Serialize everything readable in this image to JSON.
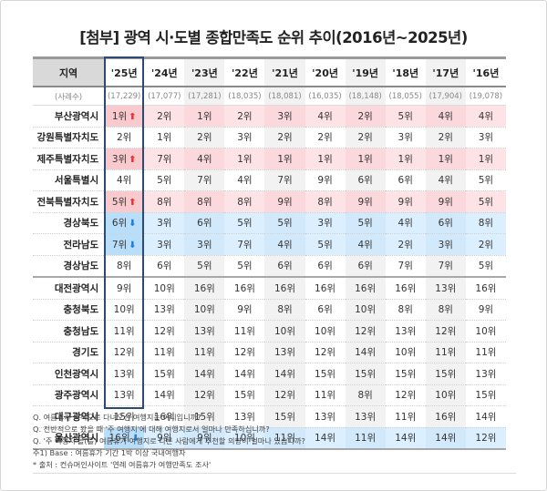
{
  "title": "[첨부] 광역 시·도별 종합만족도 순위 추이(2016년~2025년)",
  "table": {
    "region_header": "지역",
    "sample_label": "(사례수)",
    "years": [
      "'25년",
      "'24년",
      "'23년",
      "'22년",
      "'21년",
      "'20년",
      "'19년",
      "'18년",
      "'17년",
      "'16년"
    ],
    "samples": [
      "(17,229)",
      "(17,077)",
      "(17,281)",
      "(18,035)",
      "(18,081)",
      "(16,035)",
      "(18,148)",
      "(18,055)",
      "(17,904)",
      "(19,078)"
    ],
    "rows": [
      {
        "region": "부산광역시",
        "trend": "up",
        "arrow": "⬆",
        "ranks": [
          "1위",
          "2위",
          "1위",
          "2위",
          "3위",
          "4위",
          "2위",
          "5위",
          "4위",
          "4위"
        ]
      },
      {
        "region": "강원특별자치도",
        "trend": "",
        "arrow": "",
        "ranks": [
          "2위",
          "1위",
          "2위",
          "3위",
          "2위",
          "2위",
          "2위",
          "3위",
          "2위",
          "3위"
        ]
      },
      {
        "region": "제주특별자치도",
        "trend": "up",
        "arrow": "⬆",
        "ranks": [
          "3위",
          "7위",
          "4위",
          "1위",
          "1위",
          "1위",
          "1위",
          "1위",
          "1위",
          "1위"
        ]
      },
      {
        "region": "서울특별시",
        "trend": "",
        "arrow": "",
        "ranks": [
          "4위",
          "5위",
          "7위",
          "4위",
          "7위",
          "9위",
          "6위",
          "6위",
          "4위",
          "5위"
        ]
      },
      {
        "region": "전북특별자치도",
        "trend": "up",
        "arrow": "⬆",
        "ranks": [
          "5위",
          "8위",
          "8위",
          "8위",
          "9위",
          "8위",
          "9위",
          "9위",
          "9위",
          "5위"
        ]
      },
      {
        "region": "경상북도",
        "trend": "down",
        "arrow": "⬇",
        "ranks": [
          "6위",
          "3위",
          "6위",
          "5위",
          "5위",
          "3위",
          "5위",
          "4위",
          "6위",
          "8위"
        ]
      },
      {
        "region": "전라남도",
        "trend": "down",
        "arrow": "⬇",
        "ranks": [
          "7위",
          "3위",
          "3위",
          "7위",
          "4위",
          "5위",
          "4위",
          "2위",
          "3위",
          "2위"
        ]
      },
      {
        "region": "경상남도",
        "trend": "",
        "arrow": "",
        "ranks": [
          "8위",
          "6위",
          "5위",
          "5위",
          "6위",
          "6위",
          "6위",
          "7위",
          "7위",
          "5위"
        ]
      },
      {
        "region": "대전광역시",
        "trend": "",
        "arrow": "",
        "ranks": [
          "9위",
          "10위",
          "16위",
          "16위",
          "16위",
          "16위",
          "16위",
          "16위",
          "13위",
          "16위"
        ]
      },
      {
        "region": "충청북도",
        "trend": "",
        "arrow": "",
        "ranks": [
          "10위",
          "13위",
          "10위",
          "9위",
          "8위",
          "6위",
          "10위",
          "8위",
          "8위",
          "9위"
        ]
      },
      {
        "region": "충청남도",
        "trend": "",
        "arrow": "",
        "ranks": [
          "11위",
          "12위",
          "13위",
          "11위",
          "10위",
          "10위",
          "12위",
          "13위",
          "12위",
          "10위"
        ]
      },
      {
        "region": "경기도",
        "trend": "",
        "arrow": "",
        "ranks": [
          "12위",
          "11위",
          "11위",
          "12위",
          "13위",
          "12위",
          "14위",
          "10위",
          "11위",
          "11위"
        ]
      },
      {
        "region": "인천광역시",
        "trend": "",
        "arrow": "",
        "ranks": [
          "13위",
          "15위",
          "14위",
          "14위",
          "14위",
          "15위",
          "15위",
          "15위",
          "15위",
          "13위"
        ]
      },
      {
        "region": "광주광역시",
        "trend": "",
        "arrow": "",
        "ranks": [
          "13위",
          "14위",
          "12위",
          "15위",
          "12위",
          "11위",
          "8위",
          "12위",
          "10위",
          "15위"
        ]
      },
      {
        "region": "대구광역시",
        "trend": "",
        "arrow": "",
        "ranks": [
          "15위",
          "16위",
          "15위",
          "13위",
          "15위",
          "13위",
          "13위",
          "11위",
          "16위",
          "14위"
        ]
      },
      {
        "region": "울산광역시",
        "trend": "down",
        "arrow": "⬇",
        "ranks": [
          "16위",
          "9위",
          "9위",
          "10위",
          "11위",
          "14위",
          "11위",
          "14위",
          "14위",
          "12위"
        ]
      }
    ]
  },
  "notes": [
    "Q. 여름휴가 목적으로 다녀오신 여행지는 어디입니까?",
    "Q. 전반적으로 봤을 때 '주 여행지'에 대해 여행지로서 얼마나 만족하십니까?",
    "Q. '주 여행지'을(를) 여름휴가 여행지로 다른 사람에게 추천할 의향이 얼마나 있습니까?",
    "주1) Base : 여름휴가 기간 1박 이상 국내여행자",
    "* 출처 : 컨슈머인사이트 '연례 여름휴가 여행만족도 조사'"
  ],
  "colors": {
    "up_highlight": "#fde3e6",
    "down_highlight": "#dcefff",
    "up_arrow": "#e8323c",
    "down_arrow": "#1d7fd6",
    "current_year_box": "#2c4a73"
  }
}
